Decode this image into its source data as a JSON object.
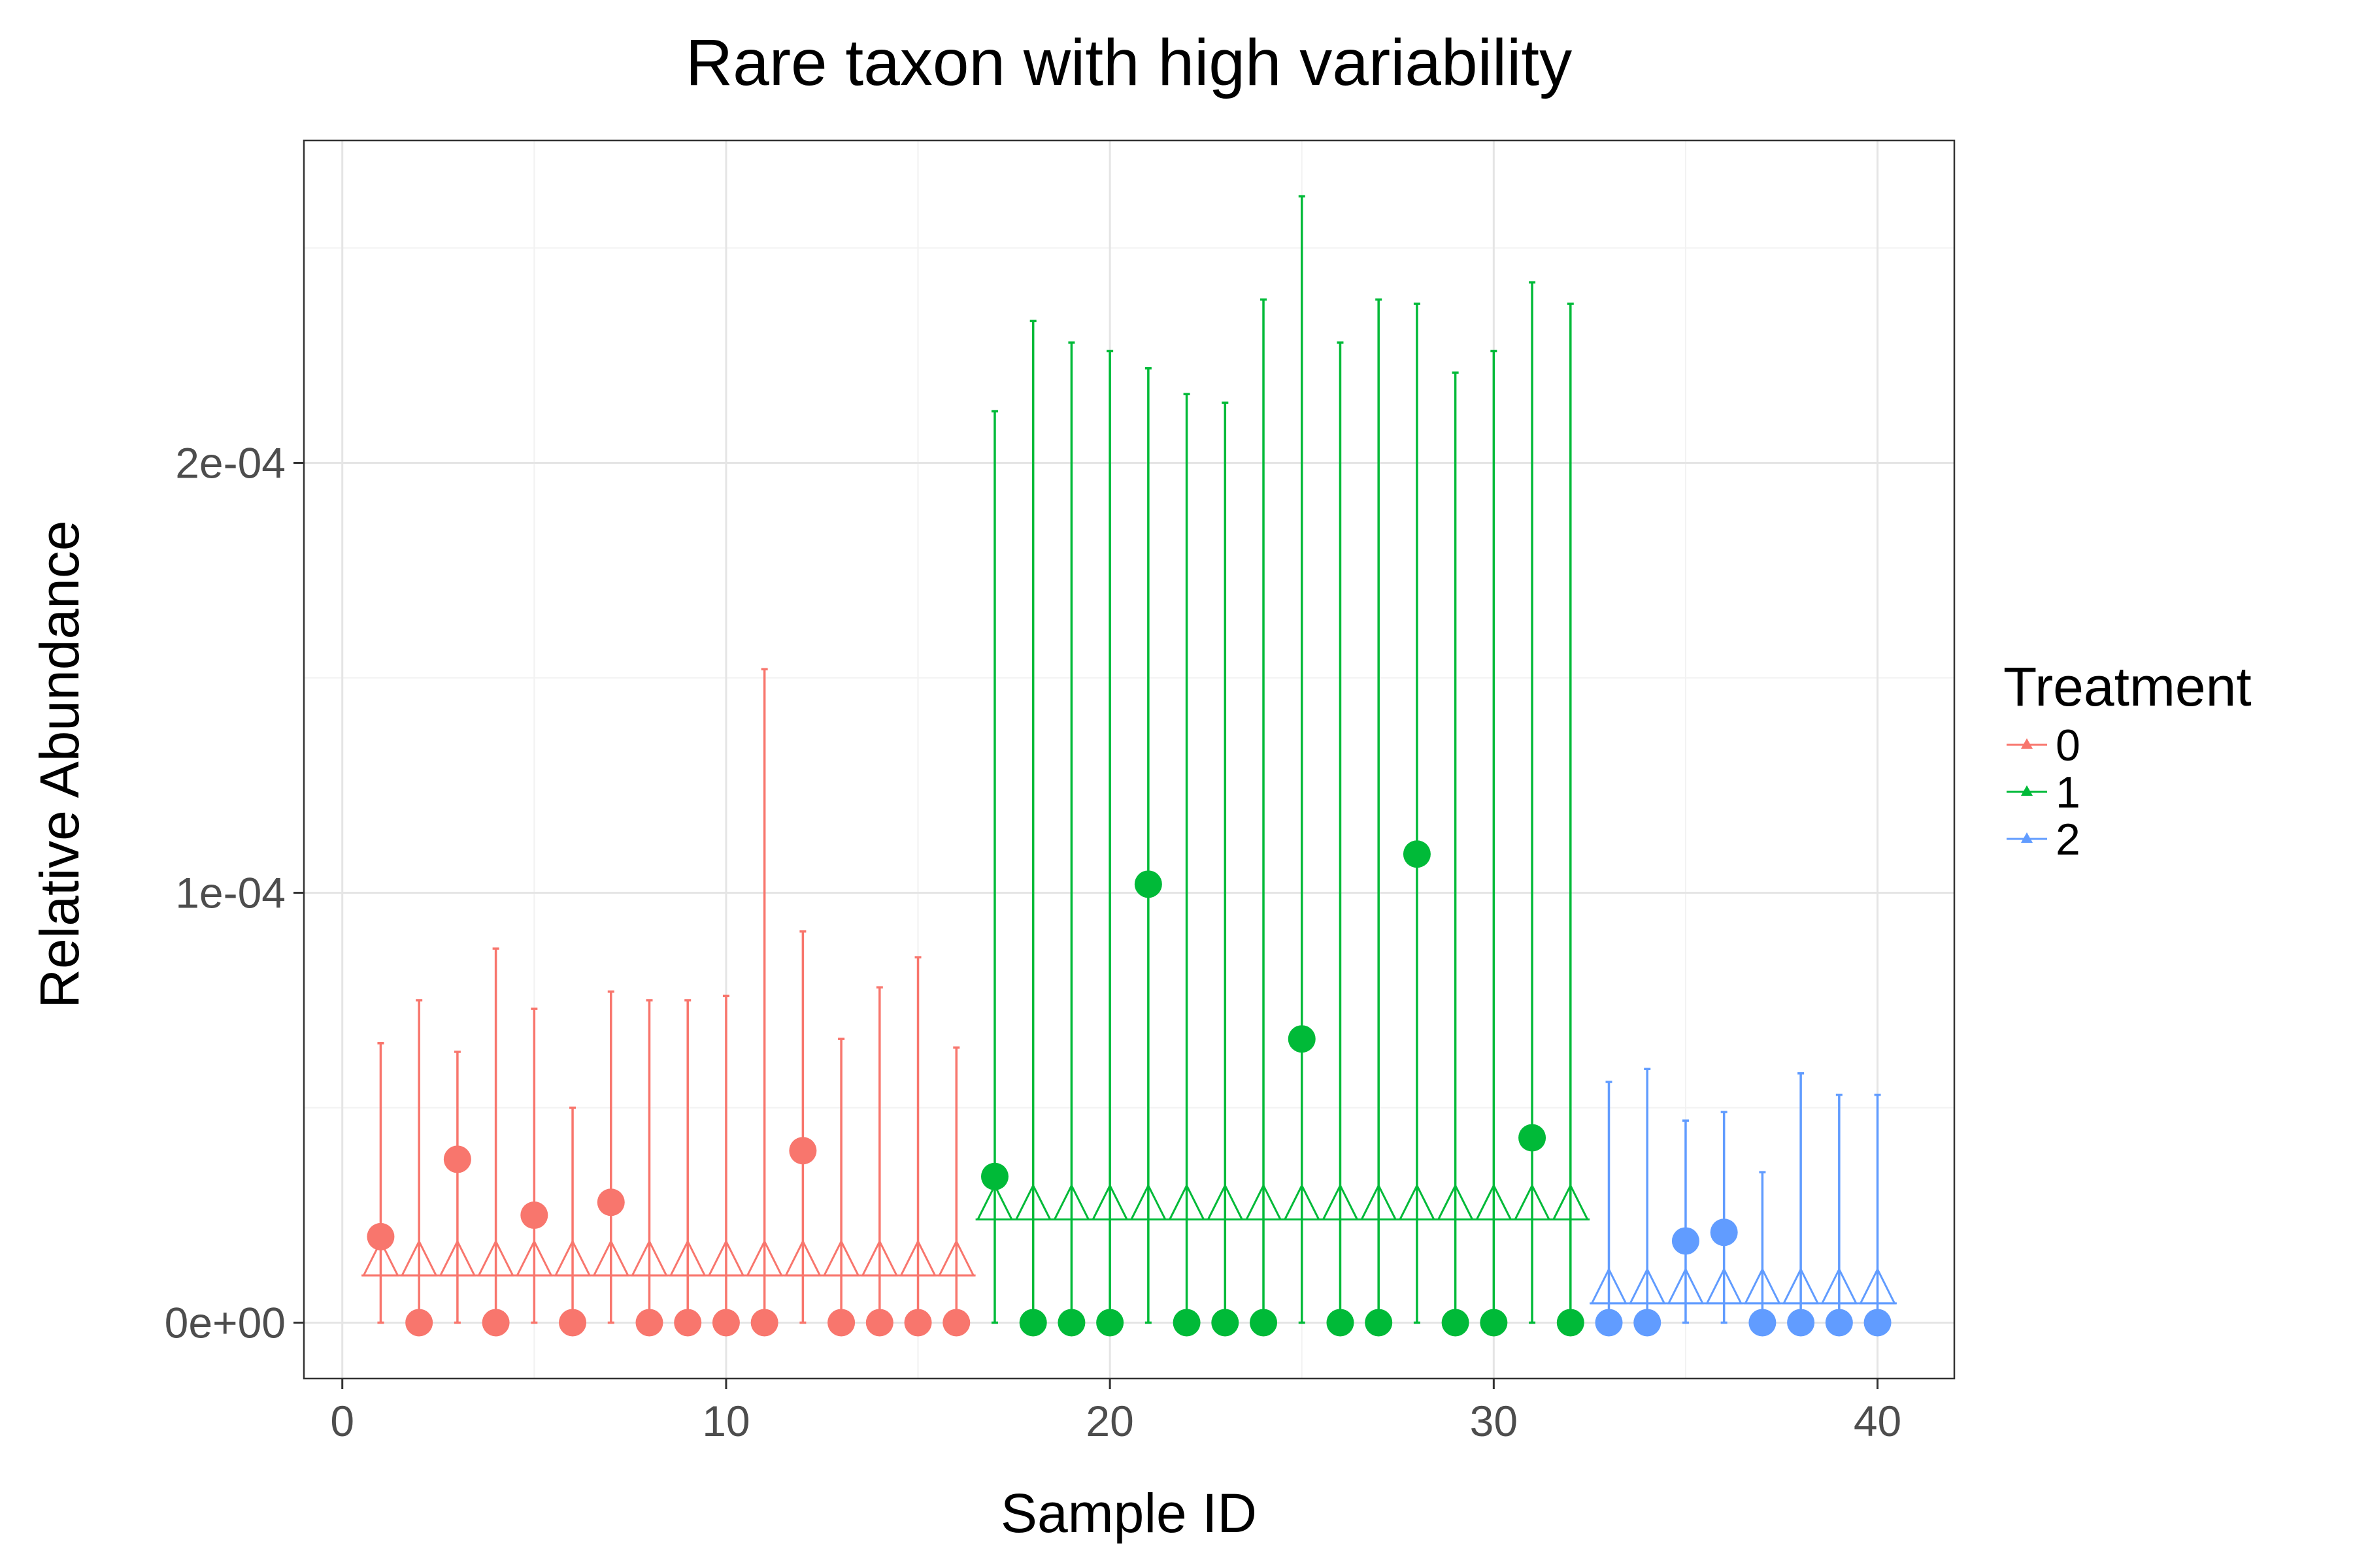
{
  "chart_data": {
    "type": "scatter",
    "title": "Rare taxon with high variability",
    "xlabel": "Sample ID",
    "ylabel": "Relative Abundance",
    "xlim": [
      -1,
      42
    ],
    "ylim": [
      -1.3e-05,
      0.000275
    ],
    "x_ticks": [
      0,
      10,
      20,
      30,
      40
    ],
    "x_tick_labels": [
      "0",
      "10",
      "20",
      "30",
      "40"
    ],
    "y_ticks": [
      0,
      0.0001,
      0.0002
    ],
    "y_tick_labels": [
      "0e+00",
      "1e-04",
      "2e-04"
    ],
    "grid": true,
    "legend": {
      "title": "Treatment",
      "placement": "right",
      "entries": [
        "0",
        "1",
        "2"
      ]
    },
    "colors": {
      "0": "#F8766D",
      "1": "#00BA38",
      "2": "#619CFF"
    },
    "series": [
      {
        "name": "0",
        "x": [
          1,
          2,
          3,
          4,
          5,
          6,
          7,
          8,
          9,
          10,
          11,
          12,
          13,
          14,
          15,
          16
        ],
        "values": [
          2e-05,
          0,
          3.8e-05,
          0,
          2.5e-05,
          0,
          2.8e-05,
          0,
          0,
          0,
          0,
          4e-05,
          0,
          0,
          0,
          0
        ],
        "upper": [
          6.5e-05,
          7.5e-05,
          6.3e-05,
          8.7e-05,
          7.3e-05,
          5e-05,
          7.7e-05,
          7.5e-05,
          7.5e-05,
          7.6e-05,
          0.000152,
          9.1e-05,
          6.6e-05,
          7.8e-05,
          8.5e-05,
          6.4e-05
        ],
        "lower": [
          0,
          0,
          0,
          0,
          0,
          0,
          0,
          0,
          0,
          0,
          0,
          0,
          0,
          0,
          0,
          0
        ],
        "model_value": 1.1e-05
      },
      {
        "name": "1",
        "x": [
          17,
          18,
          19,
          20,
          21,
          22,
          23,
          24,
          25,
          26,
          27,
          28,
          29,
          30,
          31,
          32
        ],
        "values": [
          3.4e-05,
          0,
          0,
          0,
          0.000102,
          0,
          0,
          0,
          6.6e-05,
          0,
          0,
          0.000109,
          0,
          0,
          4.3e-05,
          0
        ],
        "upper": [
          0.000212,
          0.000233,
          0.000228,
          0.000226,
          0.000222,
          0.000216,
          0.000214,
          0.000238,
          0.000262,
          0.000228,
          0.000238,
          0.000237,
          0.000221,
          0.000226,
          0.000242,
          0.000237
        ],
        "lower": [
          0,
          0,
          0,
          0,
          0,
          0,
          0,
          0,
          0,
          0,
          0,
          0,
          0,
          0,
          0,
          0
        ],
        "model_value": 2.4e-05
      },
      {
        "name": "2",
        "x": [
          33,
          34,
          35,
          36,
          37,
          38,
          39,
          40
        ],
        "values": [
          0,
          0,
          1.9e-05,
          2.1e-05,
          0,
          0,
          0,
          0
        ],
        "upper": [
          5.6e-05,
          5.9e-05,
          4.7e-05,
          4.9e-05,
          3.5e-05,
          5.8e-05,
          5.3e-05,
          5.3e-05
        ],
        "lower": [
          0,
          0,
          0,
          0,
          0,
          0,
          0,
          0
        ],
        "model_value": 4.5e-06
      }
    ]
  }
}
